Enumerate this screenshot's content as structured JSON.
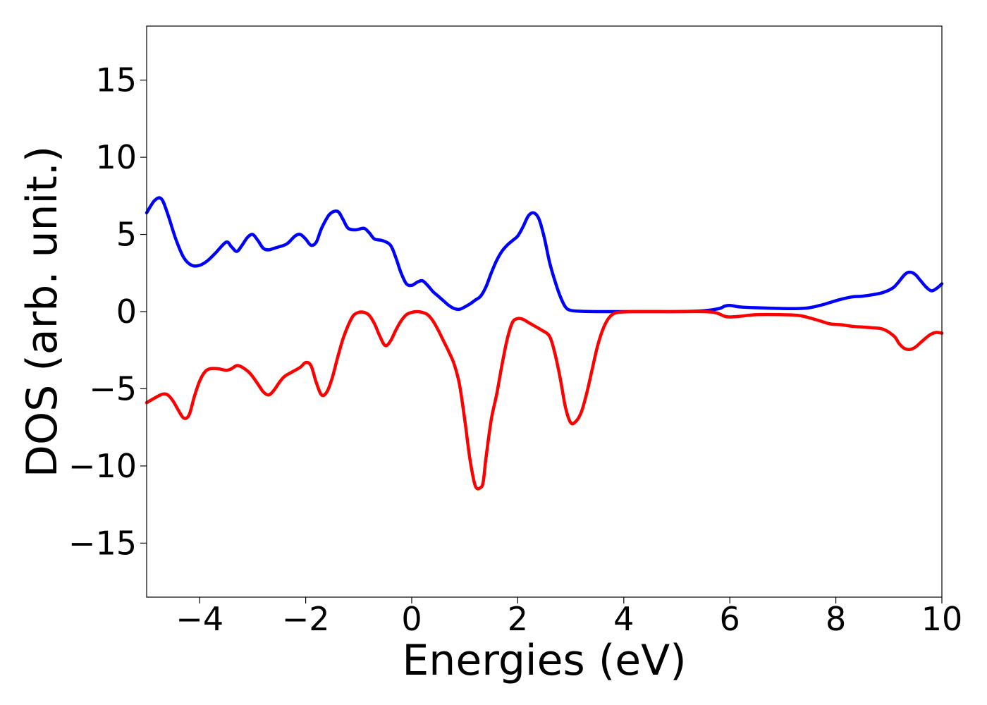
{
  "chart_data": {
    "type": "line",
    "title": "",
    "xlabel": "Energies (eV)",
    "ylabel": "DOS (arb. unit.)",
    "xlim": [
      -5,
      10
    ],
    "ylim": [
      -18.5,
      18.5
    ],
    "xticks": [
      -4,
      -2,
      0,
      2,
      4,
      6,
      8,
      10
    ],
    "yticks": [
      -15,
      -10,
      -5,
      0,
      5,
      10,
      15
    ],
    "xtick_labels": [
      "−4",
      "−2",
      "0",
      "2",
      "4",
      "6",
      "8",
      "10"
    ],
    "ytick_labels": [
      "−15",
      "−10",
      "−5",
      "0",
      "5",
      "10",
      "15"
    ],
    "grid": false,
    "legend": "none",
    "series": [
      {
        "color": "#0000ff",
        "x": [
          -5.0,
          -4.85,
          -4.72,
          -4.6,
          -4.45,
          -4.3,
          -4.15,
          -4.0,
          -3.85,
          -3.7,
          -3.5,
          -3.4,
          -3.3,
          -3.2,
          -3.1,
          -3.0,
          -2.9,
          -2.8,
          -2.7,
          -2.6,
          -2.5,
          -2.35,
          -2.2,
          -2.1,
          -2.0,
          -1.9,
          -1.8,
          -1.7,
          -1.55,
          -1.4,
          -1.3,
          -1.2,
          -1.05,
          -0.9,
          -0.8,
          -0.7,
          -0.55,
          -0.4,
          -0.3,
          -0.2,
          -0.1,
          0.0,
          0.1,
          0.2,
          0.3,
          0.4,
          0.5,
          0.6,
          0.7,
          0.8,
          0.9,
          1.0,
          1.1,
          1.2,
          1.3,
          1.4,
          1.5,
          1.6,
          1.7,
          1.8,
          1.9,
          2.0,
          2.1,
          2.2,
          2.3,
          2.4,
          2.5,
          2.6,
          2.7,
          2.8,
          2.9,
          3.0,
          3.2,
          3.5,
          4.0,
          4.5,
          5.0,
          5.5,
          5.8,
          5.9,
          6.0,
          6.2,
          6.5,
          7.0,
          7.3,
          7.5,
          7.7,
          7.9,
          8.1,
          8.3,
          8.5,
          8.7,
          8.9,
          9.1,
          9.3,
          9.4,
          9.5,
          9.6,
          9.7,
          9.8,
          9.9,
          10.0
        ],
        "y": [
          6.4,
          7.2,
          7.3,
          6.3,
          4.7,
          3.5,
          3.0,
          3.0,
          3.3,
          3.8,
          4.5,
          4.2,
          3.9,
          4.3,
          4.8,
          5.0,
          4.6,
          4.1,
          4.0,
          4.1,
          4.2,
          4.4,
          4.9,
          5.0,
          4.7,
          4.3,
          4.5,
          5.4,
          6.3,
          6.5,
          6.0,
          5.4,
          5.3,
          5.4,
          5.1,
          4.7,
          4.6,
          4.3,
          3.5,
          2.5,
          1.8,
          1.7,
          1.9,
          2.0,
          1.7,
          1.3,
          1.0,
          0.7,
          0.4,
          0.2,
          0.15,
          0.3,
          0.5,
          0.75,
          1.0,
          1.6,
          2.5,
          3.3,
          3.9,
          4.3,
          4.6,
          4.9,
          5.5,
          6.2,
          6.4,
          6.0,
          4.8,
          3.2,
          2.0,
          1.0,
          0.3,
          0.08,
          0.02,
          0.0,
          0.0,
          0.0,
          0.0,
          0.05,
          0.2,
          0.35,
          0.4,
          0.3,
          0.25,
          0.2,
          0.2,
          0.25,
          0.4,
          0.6,
          0.8,
          0.95,
          1.0,
          1.1,
          1.25,
          1.6,
          2.4,
          2.55,
          2.4,
          2.0,
          1.6,
          1.35,
          1.5,
          1.8
        ]
      },
      {
        "color": "#ff0000",
        "x": [
          -5.0,
          -4.85,
          -4.7,
          -4.6,
          -4.5,
          -4.4,
          -4.3,
          -4.2,
          -4.1,
          -4.0,
          -3.9,
          -3.8,
          -3.65,
          -3.5,
          -3.4,
          -3.3,
          -3.2,
          -3.05,
          -2.9,
          -2.8,
          -2.7,
          -2.6,
          -2.5,
          -2.4,
          -2.25,
          -2.1,
          -2.0,
          -1.9,
          -1.8,
          -1.7,
          -1.6,
          -1.5,
          -1.4,
          -1.3,
          -1.2,
          -1.1,
          -1.0,
          -0.9,
          -0.8,
          -0.7,
          -0.6,
          -0.5,
          -0.4,
          -0.3,
          -0.2,
          -0.1,
          0.0,
          0.1,
          0.2,
          0.3,
          0.4,
          0.5,
          0.6,
          0.7,
          0.8,
          0.9,
          1.0,
          1.1,
          1.2,
          1.3,
          1.35,
          1.4,
          1.5,
          1.6,
          1.7,
          1.8,
          1.9,
          2.0,
          2.1,
          2.2,
          2.3,
          2.45,
          2.6,
          2.7,
          2.8,
          2.9,
          3.0,
          3.1,
          3.2,
          3.3,
          3.4,
          3.5,
          3.6,
          3.7,
          3.8,
          3.9,
          4.0,
          4.2,
          4.5,
          5.0,
          5.5,
          5.7,
          5.8,
          5.9,
          6.0,
          6.2,
          6.5,
          7.0,
          7.3,
          7.5,
          7.7,
          7.9,
          8.1,
          8.3,
          8.5,
          8.7,
          8.9,
          9.1,
          9.2,
          9.3,
          9.4,
          9.5,
          9.6,
          9.7,
          9.8,
          9.9,
          10.0
        ],
        "y": [
          -5.9,
          -5.6,
          -5.35,
          -5.4,
          -5.8,
          -6.4,
          -6.9,
          -6.7,
          -5.5,
          -4.5,
          -3.9,
          -3.7,
          -3.7,
          -3.8,
          -3.7,
          -3.5,
          -3.6,
          -4.0,
          -4.7,
          -5.2,
          -5.4,
          -5.1,
          -4.6,
          -4.2,
          -3.9,
          -3.6,
          -3.3,
          -3.5,
          -4.6,
          -5.4,
          -5.2,
          -4.3,
          -3.0,
          -1.8,
          -0.9,
          -0.25,
          -0.05,
          -0.05,
          -0.25,
          -0.8,
          -1.6,
          -2.2,
          -1.9,
          -1.2,
          -0.6,
          -0.2,
          -0.05,
          0.0,
          -0.05,
          -0.2,
          -0.6,
          -1.2,
          -1.9,
          -2.6,
          -3.4,
          -4.7,
          -7.0,
          -9.6,
          -11.3,
          -11.4,
          -11.0,
          -9.5,
          -7.0,
          -5.4,
          -3.5,
          -1.8,
          -0.7,
          -0.45,
          -0.5,
          -0.7,
          -0.9,
          -1.2,
          -1.6,
          -2.7,
          -4.3,
          -6.2,
          -7.2,
          -7.1,
          -6.5,
          -5.3,
          -3.8,
          -2.3,
          -1.2,
          -0.5,
          -0.15,
          -0.05,
          -0.02,
          0.0,
          0.0,
          0.0,
          0.0,
          -0.05,
          -0.15,
          -0.3,
          -0.35,
          -0.3,
          -0.2,
          -0.2,
          -0.25,
          -0.4,
          -0.6,
          -0.8,
          -0.85,
          -0.95,
          -1.0,
          -1.05,
          -1.15,
          -1.6,
          -2.1,
          -2.4,
          -2.45,
          -2.3,
          -2.0,
          -1.7,
          -1.45,
          -1.35,
          -1.4
        ]
      }
    ]
  }
}
